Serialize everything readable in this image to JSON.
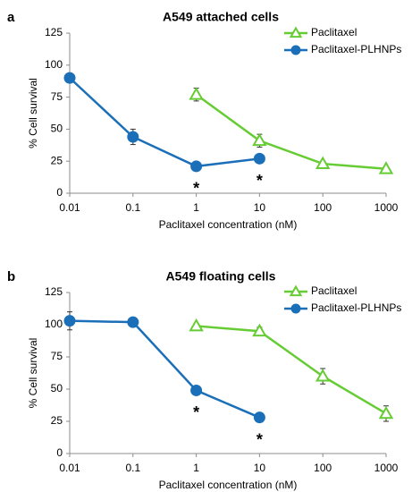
{
  "chart_data": [
    {
      "panel": "a",
      "type": "line",
      "title": "A549 attached cells",
      "xlabel": "Paclitaxel concentration (nM)",
      "ylabel": "% Cell survival",
      "x_scale": "log",
      "x_ticks": [
        "0.01",
        "0.1",
        "1",
        "10",
        "100",
        "1000"
      ],
      "y_ticks": [
        "0",
        "25",
        "50",
        "75",
        "100",
        "125"
      ],
      "ylim": [
        0,
        125
      ],
      "xlim": [
        0.01,
        1000
      ],
      "grid": false,
      "legend_position": "top-right",
      "series": [
        {
          "name": "Paclitaxel",
          "color": "#66cc33",
          "marker": "open-triangle",
          "x": [
            1,
            10,
            100,
            1000
          ],
          "y": [
            77,
            41,
            23,
            19
          ],
          "err": [
            5,
            5,
            2,
            2
          ]
        },
        {
          "name": "Paclitaxel-PLHNPs",
          "color": "#1a6fb8",
          "marker": "filled-circle",
          "x": [
            0.01,
            0.1,
            1,
            10
          ],
          "y": [
            90,
            44,
            21,
            27
          ],
          "err": [
            2,
            6,
            2,
            2
          ]
        }
      ],
      "annotations": [
        {
          "x": 1,
          "y": 21,
          "text": "*"
        },
        {
          "x": 10,
          "y": 27,
          "text": "*"
        }
      ]
    },
    {
      "panel": "b",
      "type": "line",
      "title": "A549 floating cells",
      "xlabel": "Paclitaxel concentration (nM)",
      "ylabel": "% Cell survival",
      "x_scale": "log",
      "x_ticks": [
        "0.01",
        "0.1",
        "1",
        "10",
        "100",
        "1000"
      ],
      "y_ticks": [
        "0",
        "25",
        "50",
        "75",
        "100",
        "125"
      ],
      "ylim": [
        0,
        125
      ],
      "xlim": [
        0.01,
        1000
      ],
      "grid": false,
      "legend_position": "top-right",
      "series": [
        {
          "name": "Paclitaxel",
          "color": "#66cc33",
          "marker": "open-triangle",
          "x": [
            1,
            10,
            100,
            1000
          ],
          "y": [
            99,
            95,
            60,
            31
          ],
          "err": [
            2,
            3,
            6,
            6
          ]
        },
        {
          "name": "Paclitaxel-PLHNPs",
          "color": "#1a6fb8",
          "marker": "filled-circle",
          "x": [
            0.01,
            0.1,
            1,
            10
          ],
          "y": [
            103,
            102,
            49,
            28
          ],
          "err": [
            7,
            2,
            2,
            2
          ]
        }
      ],
      "annotations": [
        {
          "x": 1,
          "y": 49,
          "text": "*"
        },
        {
          "x": 10,
          "y": 28,
          "text": "*"
        }
      ]
    }
  ]
}
